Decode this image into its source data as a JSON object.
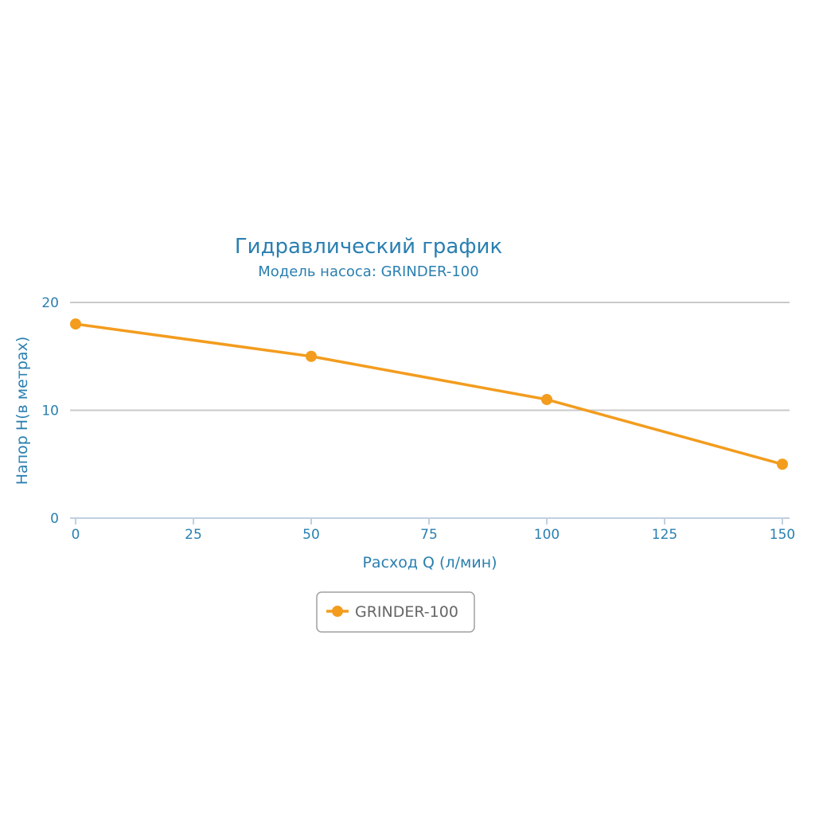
{
  "chart_data": {
    "type": "line",
    "title": "Гидравлический график",
    "subtitle": "Модель насоса: GRINDER-100",
    "xlabel": "Расход Q (л/мин)",
    "ylabel": "Напор H(в метрах)",
    "xlim": [
      0,
      150
    ],
    "ylim": [
      0,
      20
    ],
    "x_ticks": [
      0,
      25,
      50,
      75,
      100,
      125,
      150
    ],
    "x_tick_labels": [
      "0",
      "25",
      "50",
      "75",
      "100",
      "125",
      "150"
    ],
    "y_ticks": [
      0,
      10,
      20
    ],
    "y_tick_labels": [
      "0",
      "10",
      "20"
    ],
    "grid": true,
    "legend_position": "bottom-center",
    "series": [
      {
        "name": "GRINDER-100",
        "color": "#f39c1e",
        "x": [
          0,
          50,
          100,
          150
        ],
        "y": [
          18,
          15,
          11,
          5
        ]
      }
    ]
  }
}
